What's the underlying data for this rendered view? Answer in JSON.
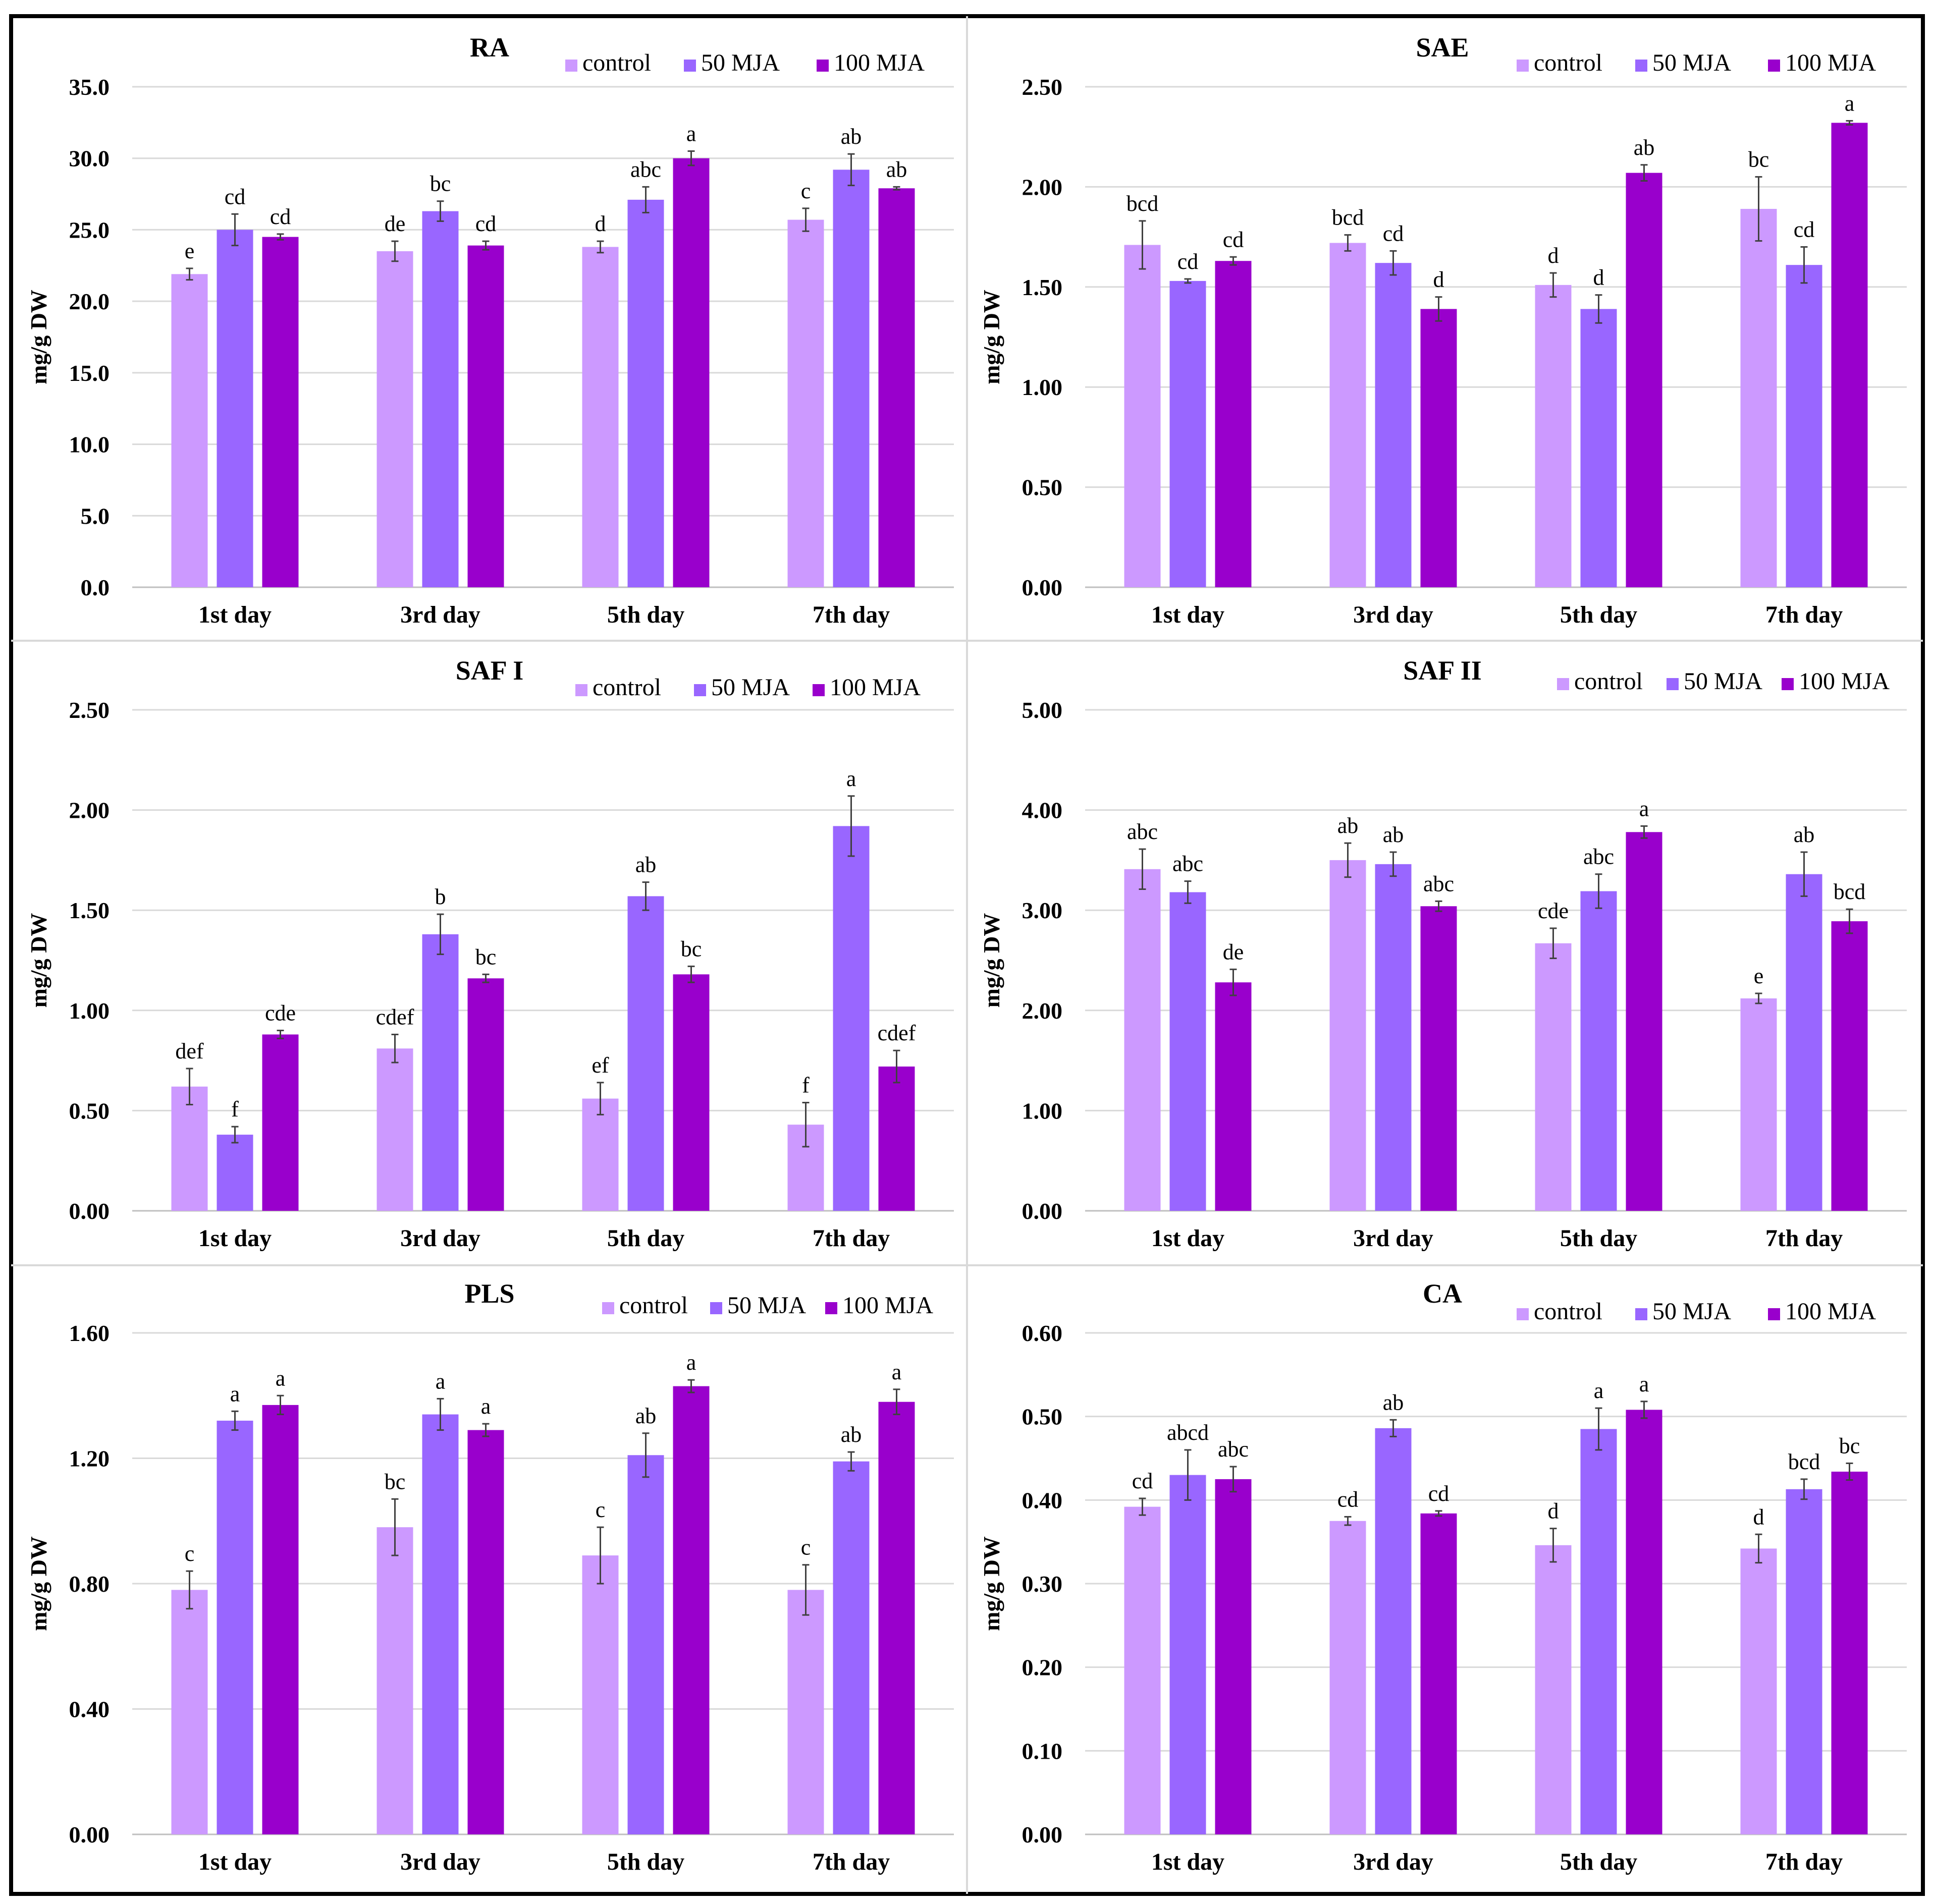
{
  "chart_data": [
    {
      "type": "bar",
      "title": "RA",
      "ylabel": "mg/g DW",
      "xlabel": "",
      "ylim": [
        0,
        35
      ],
      "yticks": [
        "0.0",
        "5.0",
        "10.0",
        "15.0",
        "20.0",
        "25.0",
        "30.0",
        "35.0"
      ],
      "categories": [
        "1st day",
        "3rd day",
        "5th day",
        "7th day"
      ],
      "legend_position": "top-right",
      "series": [
        {
          "name": "control",
          "color": "#cc99ff",
          "values": [
            21.9,
            23.5,
            23.8,
            25.7
          ],
          "errors": [
            0.4,
            0.7,
            0.4,
            0.8
          ],
          "labels": [
            "e",
            "de",
            "d",
            "c"
          ]
        },
        {
          "name": "50 MJA",
          "color": "#9966ff",
          "values": [
            25.0,
            26.3,
            27.1,
            29.2
          ],
          "errors": [
            1.1,
            0.7,
            0.9,
            1.1
          ],
          "labels": [
            "cd",
            "bc",
            "abc",
            "ab"
          ]
        },
        {
          "name": "100 MJA",
          "color": "#9900cc",
          "values": [
            24.5,
            23.9,
            30.0,
            27.9
          ],
          "errors": [
            0.2,
            0.3,
            0.5,
            0.1
          ],
          "labels": [
            "cd",
            "cd",
            "a",
            "ab"
          ]
        }
      ]
    },
    {
      "type": "bar",
      "title": "SAE",
      "ylabel": "mg/g DW",
      "xlabel": "",
      "ylim": [
        0,
        2.5
      ],
      "yticks": [
        "0.00",
        "0.50",
        "1.00",
        "1.50",
        "2.00",
        "2.50"
      ],
      "categories": [
        "1st day",
        "3rd day",
        "5th day",
        "7th day"
      ],
      "legend_position": "top-right",
      "series": [
        {
          "name": "control",
          "color": "#cc99ff",
          "values": [
            1.71,
            1.72,
            1.51,
            1.89
          ],
          "errors": [
            0.12,
            0.04,
            0.06,
            0.16
          ],
          "labels": [
            "bcd",
            "bcd",
            "d",
            "bc"
          ]
        },
        {
          "name": "50 MJA",
          "color": "#9966ff",
          "values": [
            1.53,
            1.62,
            1.39,
            1.61
          ],
          "errors": [
            0.01,
            0.06,
            0.07,
            0.09
          ],
          "labels": [
            "cd",
            "cd",
            "d",
            "cd"
          ]
        },
        {
          "name": "100 MJA",
          "color": "#9900cc",
          "values": [
            1.63,
            1.39,
            2.07,
            2.32
          ],
          "errors": [
            0.02,
            0.06,
            0.04,
            0.01
          ],
          "labels": [
            "cd",
            "d",
            "ab",
            "a"
          ]
        }
      ]
    },
    {
      "type": "bar",
      "title": "SAF I",
      "ylabel": "mg/g DW",
      "xlabel": "",
      "ylim": [
        0,
        2.5
      ],
      "yticks": [
        "0.00",
        "0.50",
        "1.00",
        "1.50",
        "2.00",
        "2.50"
      ],
      "categories": [
        "1st day",
        "3rd day",
        "5th day",
        "7th day"
      ],
      "legend_position": "top-right",
      "series": [
        {
          "name": "control",
          "color": "#cc99ff",
          "values": [
            0.62,
            0.81,
            0.56,
            0.43
          ],
          "errors": [
            0.09,
            0.07,
            0.08,
            0.11
          ],
          "labels": [
            "def",
            "cdef",
            "ef",
            "f"
          ]
        },
        {
          "name": "50 MJA",
          "color": "#9966ff",
          "values": [
            0.38,
            1.38,
            1.57,
            1.92
          ],
          "errors": [
            0.04,
            0.1,
            0.07,
            0.15
          ],
          "labels": [
            "f",
            "b",
            "ab",
            "a"
          ]
        },
        {
          "name": "100 MJA",
          "color": "#9900cc",
          "values": [
            0.88,
            1.16,
            1.18,
            0.72
          ],
          "errors": [
            0.02,
            0.02,
            0.04,
            0.08
          ],
          "labels": [
            "cde",
            "bc",
            "bc",
            "cdef"
          ]
        }
      ]
    },
    {
      "type": "bar",
      "title": "SAF II",
      "ylabel": "mg/g DW",
      "xlabel": "",
      "ylim": [
        0,
        5
      ],
      "yticks": [
        "0.00",
        "1.00",
        "2.00",
        "3.00",
        "4.00",
        "5.00"
      ],
      "categories": [
        "1st day",
        "3rd day",
        "5th day",
        "7th day"
      ],
      "legend_position": "top-right",
      "series": [
        {
          "name": "control",
          "color": "#cc99ff",
          "values": [
            3.41,
            3.5,
            2.67,
            2.12
          ],
          "errors": [
            0.2,
            0.17,
            0.15,
            0.05
          ],
          "labels": [
            "abc",
            "ab",
            "cde",
            "e"
          ]
        },
        {
          "name": "50 MJA",
          "color": "#9966ff",
          "values": [
            3.18,
            3.46,
            3.19,
            3.36
          ],
          "errors": [
            0.11,
            0.12,
            0.17,
            0.22
          ],
          "labels": [
            "abc",
            "ab",
            "abc",
            "ab"
          ]
        },
        {
          "name": "100 MJA",
          "color": "#9900cc",
          "values": [
            2.28,
            3.04,
            3.78,
            2.89
          ],
          "errors": [
            0.13,
            0.05,
            0.06,
            0.12
          ],
          "labels": [
            "de",
            "abc",
            "a",
            "bcd"
          ]
        }
      ]
    },
    {
      "type": "bar",
      "title": "PLS",
      "ylabel": "mg/g DW",
      "xlabel": "",
      "ylim": [
        0,
        1.6
      ],
      "yticks": [
        "0.00",
        "0.40",
        "0.80",
        "1.20",
        "1.60"
      ],
      "categories": [
        "1st day",
        "3rd day",
        "5th day",
        "7th day"
      ],
      "legend_position": "top-right",
      "series": [
        {
          "name": "control",
          "color": "#cc99ff",
          "values": [
            0.78,
            0.98,
            0.89,
            0.78
          ],
          "errors": [
            0.06,
            0.09,
            0.09,
            0.08
          ],
          "labels": [
            "c",
            "bc",
            "c",
            "c"
          ]
        },
        {
          "name": "50 MJA",
          "color": "#9966ff",
          "values": [
            1.32,
            1.34,
            1.21,
            1.19
          ],
          "errors": [
            0.03,
            0.05,
            0.07,
            0.03
          ],
          "labels": [
            "a",
            "a",
            "ab",
            "ab"
          ]
        },
        {
          "name": "100 MJA",
          "color": "#9900cc",
          "values": [
            1.37,
            1.29,
            1.43,
            1.38
          ],
          "errors": [
            0.03,
            0.02,
            0.02,
            0.04
          ],
          "labels": [
            "a",
            "a",
            "a",
            "a"
          ]
        }
      ]
    },
    {
      "type": "bar",
      "title": "CA",
      "ylabel": "mg/g DW",
      "xlabel": "",
      "ylim": [
        0,
        0.6
      ],
      "yticks": [
        "0.00",
        "0.10",
        "0.20",
        "0.30",
        "0.40",
        "0.50",
        "0.60"
      ],
      "categories": [
        "1st day",
        "3rd day",
        "5th day",
        "7th day"
      ],
      "legend_position": "top-right",
      "series": [
        {
          "name": "control",
          "color": "#cc99ff",
          "values": [
            0.392,
            0.375,
            0.346,
            0.342
          ],
          "errors": [
            0.01,
            0.005,
            0.02,
            0.017
          ],
          "labels": [
            "cd",
            "cd",
            "d",
            "d"
          ]
        },
        {
          "name": "50 MJA",
          "color": "#9966ff",
          "values": [
            0.43,
            0.486,
            0.485,
            0.413
          ],
          "errors": [
            0.03,
            0.01,
            0.025,
            0.012
          ],
          "labels": [
            "abcd",
            "ab",
            "a",
            "bcd"
          ]
        },
        {
          "name": "100 MJA",
          "color": "#9900cc",
          "values": [
            0.425,
            0.384,
            0.508,
            0.434
          ],
          "errors": [
            0.015,
            0.003,
            0.01,
            0.01
          ],
          "labels": [
            "abc",
            "cd",
            "a",
            "bc"
          ]
        }
      ]
    }
  ]
}
